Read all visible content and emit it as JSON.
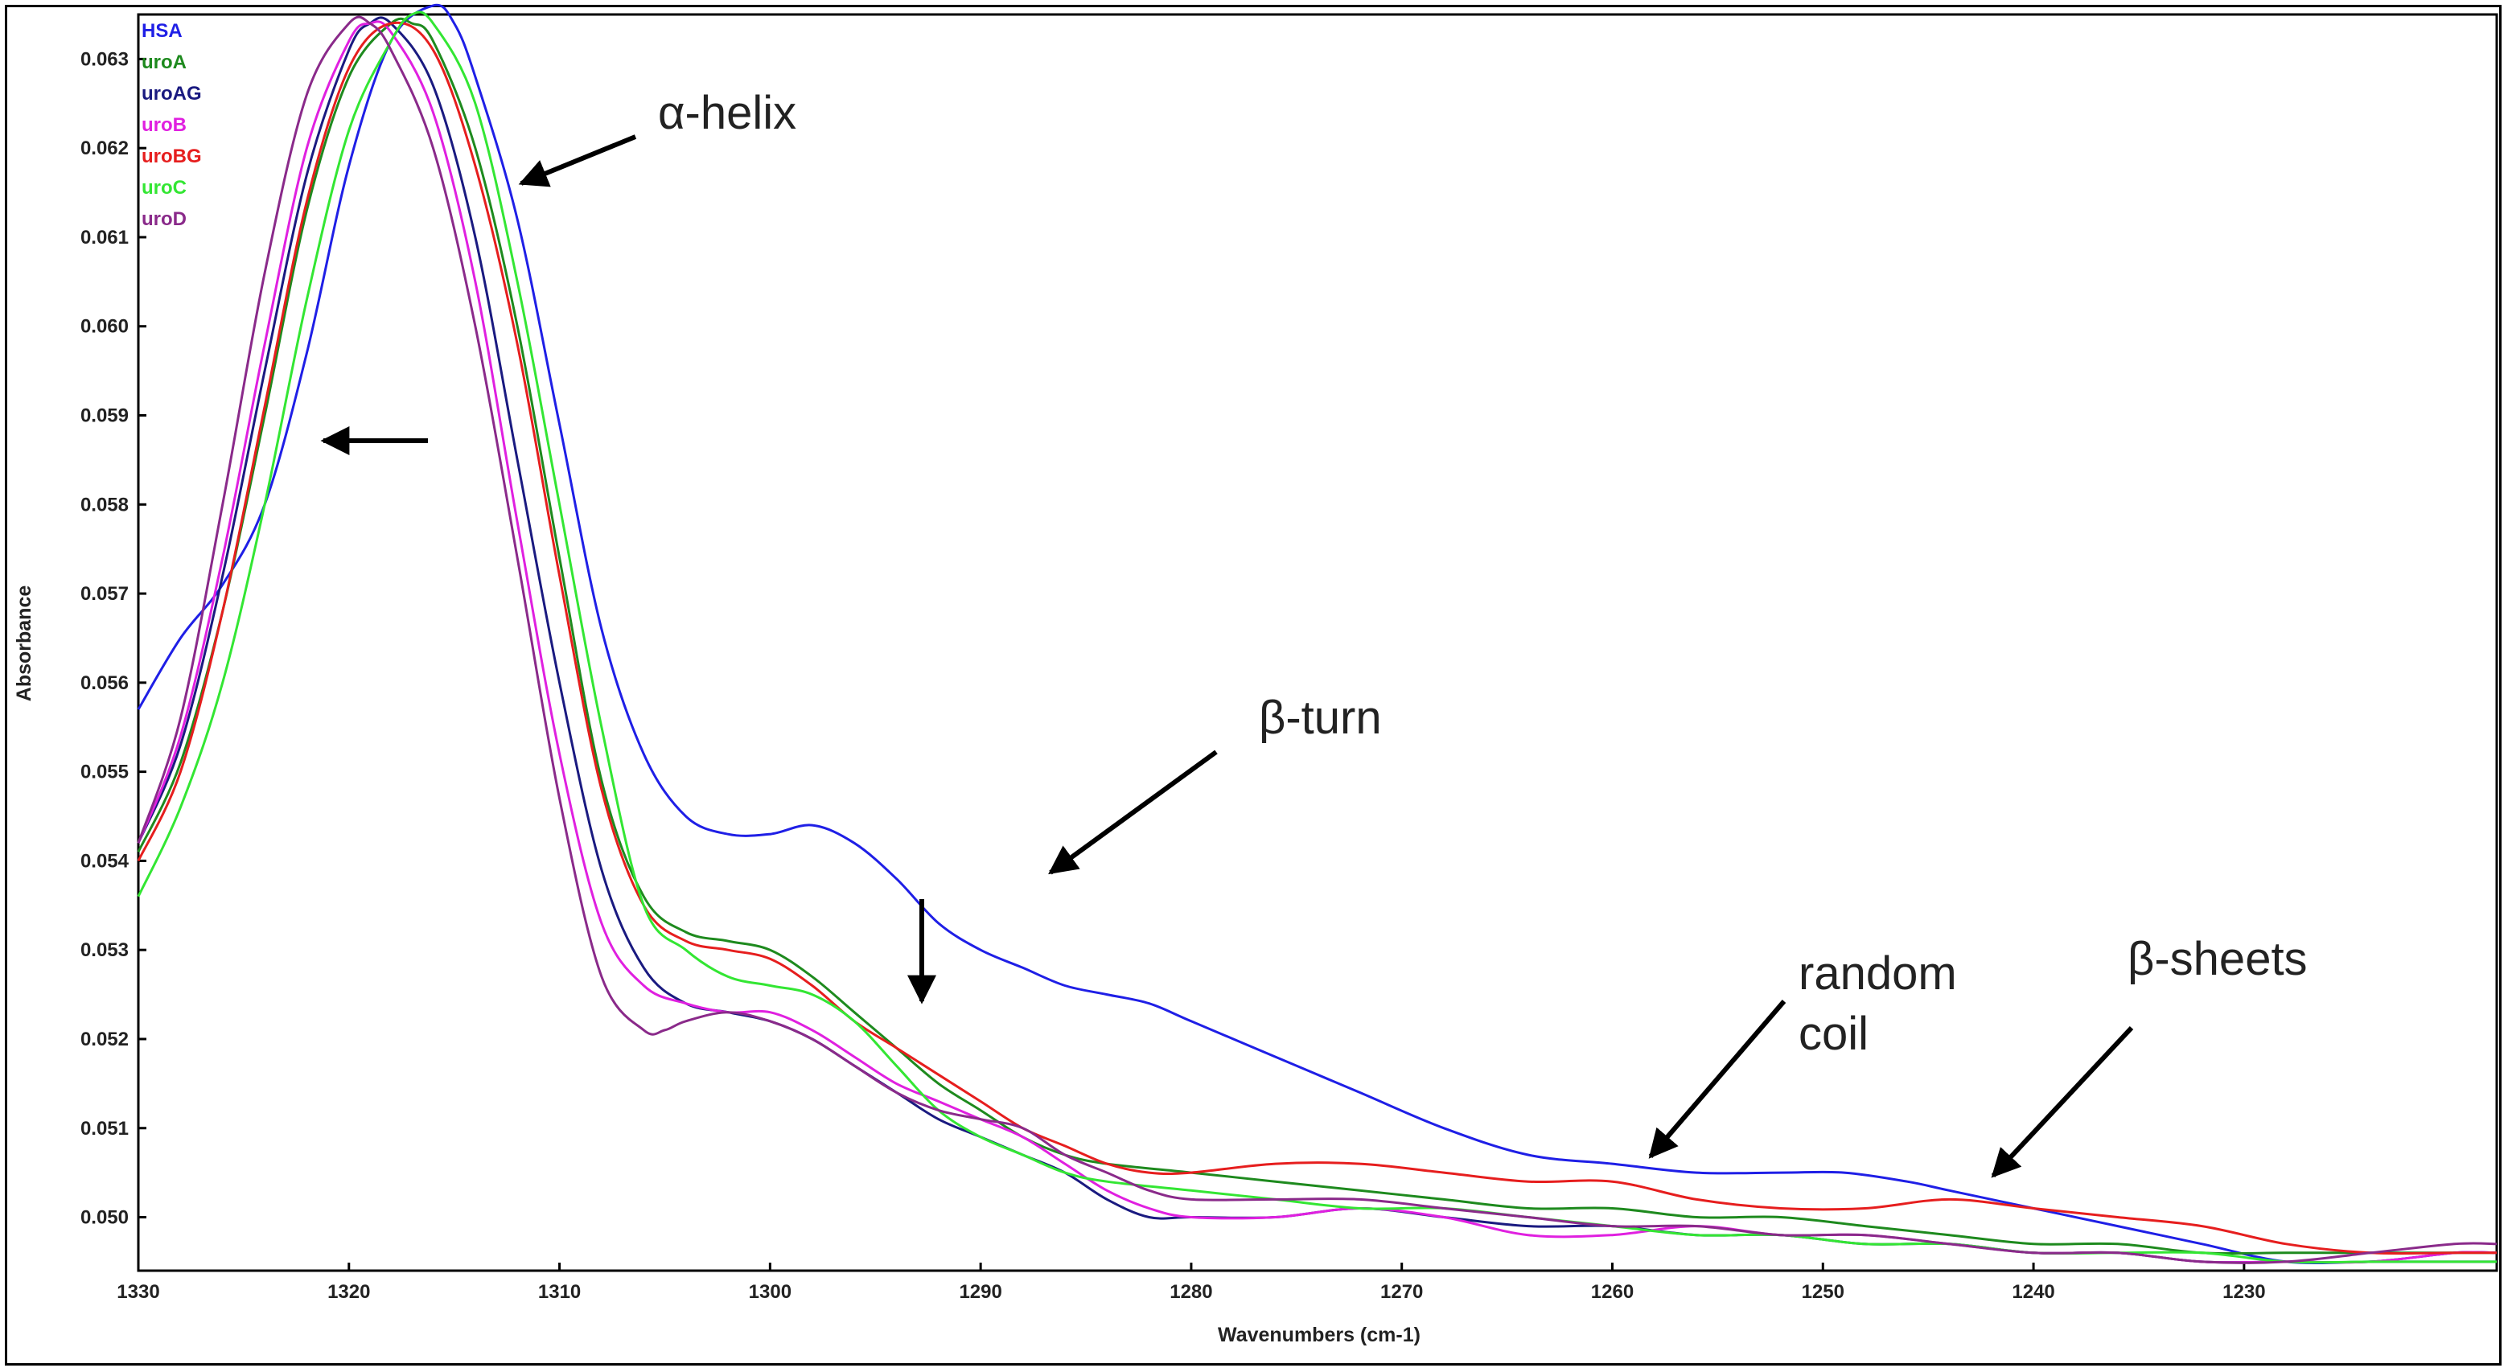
{
  "chart_data": {
    "type": "line",
    "xlabel": "Wavenumbers (cm-1)",
    "ylabel": "Absorbance",
    "xlim": [
      1330,
      1218
    ],
    "ylim": [
      0.0494,
      0.0635
    ],
    "x_ticks": [
      1330,
      1320,
      1310,
      1300,
      1290,
      1280,
      1270,
      1260,
      1250,
      1240,
      1230
    ],
    "y_ticks": [
      0.05,
      0.051,
      0.052,
      0.053,
      0.054,
      0.055,
      0.056,
      0.057,
      0.058,
      0.059,
      0.06,
      0.061,
      0.062,
      0.063
    ],
    "y_tick_labels": [
      "0.050",
      "0.051",
      "0.052",
      "0.053",
      "0.054",
      "0.055",
      "0.056",
      "0.057",
      "0.058",
      "0.059",
      "0.060",
      "0.061",
      "0.062",
      "0.063"
    ],
    "legend_position": "top-left",
    "series": [
      {
        "name": "HSA",
        "color": "#1f1fe6",
        "x": [
          1330,
          1328,
          1326,
          1324,
          1322,
          1320,
          1318,
          1316,
          1315,
          1314,
          1312,
          1310,
          1308,
          1306,
          1304,
          1302,
          1300,
          1298,
          1296,
          1294,
          1292,
          1290,
          1288,
          1286,
          1284,
          1282,
          1280,
          1276,
          1272,
          1268,
          1264,
          1260,
          1256,
          1252,
          1249,
          1246,
          1244,
          1240,
          1236,
          1232,
          1228,
          1224,
          1220,
          1218
        ],
        "y": [
          0.0557,
          0.0565,
          0.0571,
          0.058,
          0.0597,
          0.0618,
          0.0632,
          0.0636,
          0.0634,
          0.0628,
          0.0612,
          0.0589,
          0.0566,
          0.0552,
          0.0545,
          0.0543,
          0.0543,
          0.0544,
          0.0542,
          0.0538,
          0.0533,
          0.053,
          0.0528,
          0.0526,
          0.0525,
          0.0524,
          0.0522,
          0.0518,
          0.0514,
          0.051,
          0.0507,
          0.0506,
          0.0505,
          0.0505,
          0.0505,
          0.0504,
          0.0503,
          0.0501,
          0.0499,
          0.0497,
          0.0495,
          0.0495,
          0.0495,
          0.0495
        ]
      },
      {
        "name": "uroA",
        "color": "#1e8a1e",
        "x": [
          1330,
          1328,
          1326,
          1324,
          1322,
          1320,
          1318,
          1317,
          1316,
          1314,
          1312,
          1310,
          1308,
          1306,
          1304,
          1302,
          1300,
          1298,
          1296,
          1294,
          1292,
          1290,
          1288,
          1286,
          1284,
          1280,
          1276,
          1272,
          1268,
          1264,
          1260,
          1256,
          1252,
          1248,
          1244,
          1240,
          1236,
          1232,
          1228,
          1224,
          1220,
          1218
        ],
        "y": [
          0.0541,
          0.0551,
          0.0568,
          0.059,
          0.0613,
          0.0628,
          0.0634,
          0.0634,
          0.0632,
          0.062,
          0.06,
          0.0574,
          0.0549,
          0.0536,
          0.0532,
          0.0531,
          0.053,
          0.0527,
          0.0523,
          0.0519,
          0.0515,
          0.0512,
          0.0509,
          0.0507,
          0.0506,
          0.0505,
          0.0504,
          0.0503,
          0.0502,
          0.0501,
          0.0501,
          0.05,
          0.05,
          0.0499,
          0.0498,
          0.0497,
          0.0497,
          0.0496,
          0.0496,
          0.0496,
          0.0496,
          0.0496
        ]
      },
      {
        "name": "uroAG",
        "color": "#1a1a80",
        "x": [
          1330,
          1328,
          1326,
          1324,
          1322,
          1320,
          1319,
          1318,
          1316,
          1314,
          1312,
          1310,
          1308,
          1306,
          1304,
          1302,
          1300,
          1298,
          1296,
          1294,
          1292,
          1290,
          1288,
          1286,
          1284,
          1282,
          1280,
          1276,
          1272,
          1268,
          1264,
          1260,
          1256,
          1252,
          1248,
          1244,
          1240,
          1236,
          1232,
          1228,
          1224,
          1220,
          1218
        ],
        "y": [
          0.0542,
          0.0553,
          0.0572,
          0.0595,
          0.0617,
          0.0631,
          0.0634,
          0.0634,
          0.0627,
          0.061,
          0.0585,
          0.056,
          0.0539,
          0.0528,
          0.0524,
          0.0523,
          0.0522,
          0.052,
          0.0517,
          0.0514,
          0.0511,
          0.0509,
          0.0507,
          0.0505,
          0.0502,
          0.05,
          0.05,
          0.05,
          0.0501,
          0.05,
          0.0499,
          0.0499,
          0.0498,
          0.0498,
          0.0497,
          0.0497,
          0.0496,
          0.0496,
          0.0495,
          0.0495,
          0.0495,
          0.0496,
          0.0496
        ]
      },
      {
        "name": "uroB",
        "color": "#e020e0",
        "x": [
          1330,
          1328,
          1326,
          1324,
          1322,
          1320,
          1319,
          1318,
          1316,
          1314,
          1312,
          1310,
          1308,
          1306,
          1304,
          1302,
          1300,
          1298,
          1296,
          1294,
          1292,
          1290,
          1288,
          1286,
          1284,
          1282,
          1280,
          1276,
          1272,
          1268,
          1264,
          1260,
          1256,
          1252,
          1248,
          1244,
          1240,
          1236,
          1232,
          1228,
          1224,
          1220,
          1218
        ],
        "y": [
          0.0542,
          0.0554,
          0.0574,
          0.0598,
          0.062,
          0.0632,
          0.0634,
          0.0633,
          0.0624,
          0.0605,
          0.0578,
          0.0552,
          0.0533,
          0.0526,
          0.0524,
          0.0523,
          0.0523,
          0.0521,
          0.0518,
          0.0515,
          0.0513,
          0.0511,
          0.0509,
          0.0506,
          0.0503,
          0.0501,
          0.05,
          0.05,
          0.0501,
          0.05,
          0.0498,
          0.0498,
          0.0499,
          0.0498,
          0.0498,
          0.0497,
          0.0496,
          0.0496,
          0.0495,
          0.0495,
          0.0495,
          0.0496,
          0.0496
        ]
      },
      {
        "name": "uroBG",
        "color": "#e61e1e",
        "x": [
          1330,
          1328,
          1326,
          1324,
          1322,
          1320,
          1318,
          1316,
          1314,
          1312,
          1310,
          1308,
          1306,
          1304,
          1302,
          1300,
          1298,
          1296,
          1294,
          1292,
          1290,
          1288,
          1286,
          1284,
          1282,
          1280,
          1276,
          1272,
          1268,
          1264,
          1260,
          1256,
          1252,
          1248,
          1244,
          1240,
          1236,
          1232,
          1228,
          1224,
          1220,
          1218
        ],
        "y": [
          0.054,
          0.055,
          0.0568,
          0.0591,
          0.0614,
          0.0629,
          0.0634,
          0.0631,
          0.0618,
          0.0598,
          0.0572,
          0.0548,
          0.0535,
          0.0531,
          0.053,
          0.0529,
          0.0526,
          0.0522,
          0.0519,
          0.0516,
          0.0513,
          0.051,
          0.0508,
          0.0506,
          0.0505,
          0.0505,
          0.0506,
          0.0506,
          0.0505,
          0.0504,
          0.0504,
          0.0502,
          0.0501,
          0.0501,
          0.0502,
          0.0501,
          0.05,
          0.0499,
          0.0497,
          0.0496,
          0.0496,
          0.0496
        ]
      },
      {
        "name": "uroC",
        "color": "#33e633",
        "x": [
          1330,
          1328,
          1326,
          1324,
          1322,
          1320,
          1318,
          1317,
          1316,
          1314,
          1312,
          1310,
          1308,
          1306,
          1304,
          1302,
          1300,
          1298,
          1296,
          1294,
          1292,
          1290,
          1288,
          1286,
          1284,
          1280,
          1276,
          1272,
          1268,
          1264,
          1260,
          1256,
          1252,
          1248,
          1244,
          1240,
          1236,
          1232,
          1228,
          1224,
          1220,
          1218
        ],
        "y": [
          0.0536,
          0.0546,
          0.056,
          0.058,
          0.0603,
          0.0622,
          0.0632,
          0.0635,
          0.0634,
          0.0625,
          0.0605,
          0.058,
          0.0555,
          0.0535,
          0.053,
          0.0527,
          0.0526,
          0.0525,
          0.0522,
          0.0517,
          0.0512,
          0.0509,
          0.0507,
          0.0505,
          0.0504,
          0.0503,
          0.0502,
          0.0501,
          0.0501,
          0.05,
          0.0499,
          0.0498,
          0.0498,
          0.0497,
          0.0497,
          0.0496,
          0.0496,
          0.0496,
          0.0495,
          0.0495,
          0.0495,
          0.0495
        ]
      },
      {
        "name": "uroD",
        "color": "#8a2a8a",
        "x": [
          1330,
          1328,
          1326,
          1324,
          1322,
          1320,
          1319,
          1318,
          1316,
          1314,
          1312,
          1310,
          1308,
          1306,
          1305,
          1304,
          1302,
          1300,
          1298,
          1296,
          1294,
          1292,
          1290,
          1288,
          1286,
          1284,
          1282,
          1280,
          1276,
          1272,
          1268,
          1264,
          1260,
          1256,
          1252,
          1248,
          1244,
          1240,
          1236,
          1232,
          1228,
          1224,
          1220,
          1218
        ],
        "y": [
          0.0542,
          0.0556,
          0.058,
          0.0606,
          0.0626,
          0.0634,
          0.0634,
          0.0631,
          0.062,
          0.06,
          0.0574,
          0.0547,
          0.0527,
          0.0521,
          0.0521,
          0.0522,
          0.0523,
          0.0522,
          0.052,
          0.0517,
          0.0514,
          0.0512,
          0.0511,
          0.051,
          0.0507,
          0.0505,
          0.0503,
          0.0502,
          0.0502,
          0.0502,
          0.0501,
          0.05,
          0.0499,
          0.0499,
          0.0498,
          0.0498,
          0.0497,
          0.0496,
          0.0496,
          0.0495,
          0.0495,
          0.0496,
          0.0497,
          0.0497
        ]
      }
    ],
    "annotations": [
      {
        "text": "α-helix"
      },
      {
        "text": "β-turn"
      },
      {
        "text": "random"
      },
      {
        "text": "coil"
      },
      {
        "text": "β-sheets"
      }
    ]
  }
}
